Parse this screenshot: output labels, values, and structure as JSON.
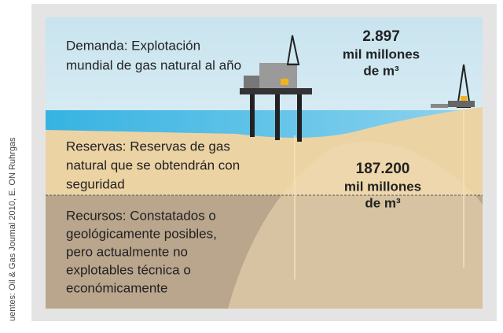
{
  "demand": {
    "lines": [
      "Demanda: Explotación",
      "mundial de gas natural al año"
    ],
    "value": "2.897",
    "unit_lines": [
      "mil millones",
      "de m³"
    ]
  },
  "reserves": {
    "lines": [
      "Reservas: Reservas de gas",
      "natural que se obtendrán con",
      "seguridad"
    ],
    "value": "187.200",
    "unit_lines": [
      "mil millones",
      "de m³"
    ]
  },
  "resources": {
    "lines": [
      "Recursos: Constatados o",
      "geológicamente posibles,",
      "pero actualmente no",
      "explotables técnica o",
      "económicamente"
    ]
  },
  "source": "uentes: Oil & Gas Journal 2010, E. ON Ruhrgas"
}
